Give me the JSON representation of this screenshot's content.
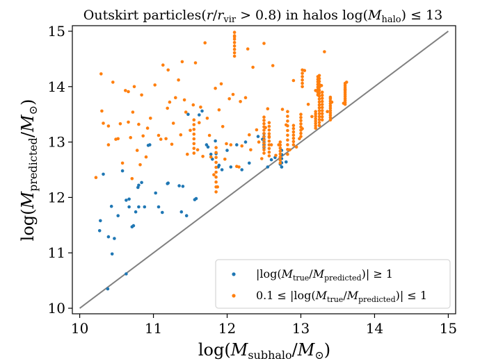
{
  "chart_data": {
    "type": "scatter",
    "title": "Outskirt particles(r/r_vir > 0.8) in halos log(M_halo) ≤ 13",
    "xlabel": "log(M_subhalo/M_⊙)",
    "ylabel": "log(M_predicted/M_⊙)",
    "xlim": [
      9.9,
      15.1
    ],
    "ylim": [
      9.9,
      15.1
    ],
    "xticks": [
      "10",
      "11",
      "12",
      "13",
      "14",
      "15"
    ],
    "yticks": [
      "10",
      "11",
      "12",
      "13",
      "14",
      "15"
    ],
    "grid": false,
    "legend_position": "lower-right",
    "reference_line": {
      "x": [
        10,
        15
      ],
      "y": [
        10,
        15
      ],
      "color": "#808080"
    },
    "series": [
      {
        "name": "|log(M_true/M_predicted)| ≥ 1",
        "color": "#1f77b4",
        "x": [
          10.28,
          10.32,
          10.27,
          10.38,
          10.43,
          10.47,
          10.44,
          10.39,
          10.52,
          10.58,
          10.63,
          10.67,
          10.67,
          10.71,
          10.73,
          10.76,
          10.79,
          10.8,
          10.8,
          10.84,
          10.88,
          10.93,
          10.95,
          11.03,
          11.07,
          11.12,
          11.19,
          11.2,
          11.35,
          11.38,
          11.45,
          11.47,
          11.56,
          11.58,
          11.62,
          11.66,
          11.72,
          11.74,
          11.78,
          11.8,
          11.84,
          11.85,
          11.88,
          11.89,
          11.93,
          12.0,
          12.05,
          12.13,
          12.2,
          12.25,
          12.42,
          12.48,
          12.5,
          12.55,
          12.6,
          12.65,
          12.72,
          12.74,
          12.8,
          12.3,
          10.63,
          11.4
        ],
        "y": [
          11.58,
          12.42,
          11.4,
          10.35,
          11.84,
          11.26,
          10.98,
          11.29,
          11.67,
          12.48,
          10.62,
          11.97,
          11.83,
          11.47,
          11.49,
          11.74,
          12.18,
          12.22,
          11.83,
          12.27,
          11.83,
          12.94,
          12.95,
          12.08,
          11.83,
          11.73,
          12.25,
          12.26,
          12.21,
          11.74,
          11.67,
          13.5,
          11.96,
          11.98,
          13.49,
          13.56,
          12.95,
          12.91,
          12.78,
          12.69,
          13.02,
          12.79,
          12.55,
          12.58,
          12.5,
          12.85,
          12.55,
          12.95,
          12.5,
          13.0,
          13.1,
          13.05,
          12.95,
          12.55,
          12.68,
          12.72,
          12.6,
          12.55,
          12.64,
          12.62,
          11.95,
          12.2
        ]
      },
      {
        "name": "0.1 ≤ |log(M_true/M_predicted)| ≤ 1",
        "color": "#ff7f0e",
        "x": [
          10.22,
          10.29,
          10.32,
          10.3,
          10.39,
          10.39,
          10.45,
          10.49,
          10.52,
          10.55,
          10.58,
          10.62,
          10.66,
          10.66,
          10.69,
          10.71,
          10.72,
          10.74,
          10.78,
          10.8,
          10.82,
          10.84,
          10.86,
          10.9,
          10.92,
          10.96,
          11.02,
          11.07,
          11.1,
          11.13,
          11.17,
          11.19,
          11.2,
          11.22,
          11.25,
          11.27,
          11.3,
          11.34,
          11.37,
          11.39,
          11.42,
          11.44,
          11.46,
          11.5,
          11.54,
          11.57,
          11.6,
          11.62,
          11.64,
          11.67,
          11.7,
          11.73,
          11.76,
          11.78,
          11.82,
          11.84,
          11.87,
          11.89,
          11.92,
          11.94,
          11.97,
          11.99,
          12.03,
          12.05,
          12.08,
          12.1,
          12.13,
          12.16,
          12.18,
          12.2,
          12.25,
          12.28,
          12.3,
          12.32,
          12.35,
          12.4,
          12.43,
          12.47,
          12.5,
          12.52,
          12.55,
          12.57,
          12.6,
          12.62,
          12.66,
          12.7,
          12.75,
          12.8,
          12.85,
          12.9,
          12.94,
          12.98,
          13.02,
          13.05,
          13.1,
          13.15,
          13.2,
          13.25,
          13.28,
          13.32,
          13.36,
          13.4,
          13.42,
          13.58,
          13.6,
          13.62
        ],
        "y": [
          12.36,
          14.23,
          13.34,
          13.56,
          13.29,
          12.95,
          14.08,
          13.05,
          13.06,
          13.33,
          12.62,
          13.93,
          13.36,
          13.91,
          13.08,
          12.34,
          13.54,
          14.0,
          12.85,
          13.32,
          12.59,
          13.85,
          13.11,
          12.73,
          13.25,
          13.43,
          14.03,
          13.12,
          13.05,
          14.39,
          13.06,
          13.61,
          14.3,
          13.72,
          12.96,
          13.34,
          13.8,
          14.12,
          13.13,
          14.45,
          13.76,
          13.54,
          12.78,
          13.21,
          13.67,
          14.43,
          12.86,
          13.35,
          13.63,
          12.74,
          14.79,
          13.43,
          13.12,
          12.73,
          12.41,
          13.97,
          12.19,
          13.58,
          14.05,
          13.28,
          12.69,
          12.97,
          13.78,
          12.95,
          13.86,
          14.9,
          12.56,
          12.55,
          13.73,
          12.93,
          13.8,
          14.68,
          13.13,
          12.86,
          14.35,
          13.22,
          13.0,
          12.7,
          14.78,
          13.26,
          13.6,
          13.1,
          12.95,
          14.38,
          12.76,
          12.95,
          13.59,
          13.31,
          12.86,
          14.11,
          12.91,
          13.06,
          13.24,
          14.29,
          13.68,
          13.46,
          13.93,
          13.3,
          14.02,
          14.63,
          13.55,
          13.81,
          13.72,
          13.7,
          13.95,
          14.08
        ]
      }
    ],
    "stacks": [
      {
        "series": 1,
        "x": 12.1,
        "y0": 14.55,
        "y1": 14.98,
        "n": 8
      },
      {
        "series": 1,
        "x": 12.5,
        "y0": 12.8,
        "y1": 13.45,
        "n": 12
      },
      {
        "series": 1,
        "x": 12.57,
        "y0": 12.75,
        "y1": 13.35,
        "n": 10
      },
      {
        "series": 1,
        "x": 12.72,
        "y0": 12.62,
        "y1": 13.0,
        "n": 8
      },
      {
        "series": 1,
        "x": 12.82,
        "y0": 12.78,
        "y1": 13.55,
        "n": 10
      },
      {
        "series": 1,
        "x": 12.9,
        "y0": 12.95,
        "y1": 13.3,
        "n": 7
      },
      {
        "series": 1,
        "x": 13.0,
        "y0": 13.1,
        "y1": 13.5,
        "n": 8
      },
      {
        "series": 1,
        "x": 13.02,
        "y0": 14.0,
        "y1": 14.3,
        "n": 6
      },
      {
        "series": 1,
        "x": 13.2,
        "y0": 13.25,
        "y1": 13.55,
        "n": 8
      },
      {
        "series": 1,
        "x": 13.23,
        "y0": 13.85,
        "y1": 14.18,
        "n": 8
      },
      {
        "series": 1,
        "x": 13.25,
        "y0": 13.3,
        "y1": 14.2,
        "n": 18
      },
      {
        "series": 1,
        "x": 13.29,
        "y0": 13.4,
        "y1": 13.9,
        "n": 10
      },
      {
        "series": 1,
        "x": 13.4,
        "y0": 13.4,
        "y1": 13.78,
        "n": 10
      },
      {
        "series": 1,
        "x": 13.6,
        "y0": 13.68,
        "y1": 14.06,
        "n": 12
      },
      {
        "series": 1,
        "x": 11.55,
        "y0": 12.8,
        "y1": 13.4,
        "n": 8
      },
      {
        "series": 1,
        "x": 11.85,
        "y0": 12.1,
        "y1": 12.9,
        "n": 10
      },
      {
        "series": 0,
        "x": 12.5,
        "y0": 12.9,
        "y1": 13.15,
        "n": 6
      },
      {
        "series": 0,
        "x": 12.74,
        "y0": 12.55,
        "y1": 12.85,
        "n": 5
      }
    ],
    "legend": {
      "entries": [
        "|log(M_true/M_predicted)| ≥ 1",
        "0.1 ≤ |log(M_true/M_predicted)| ≤ 1"
      ]
    }
  }
}
